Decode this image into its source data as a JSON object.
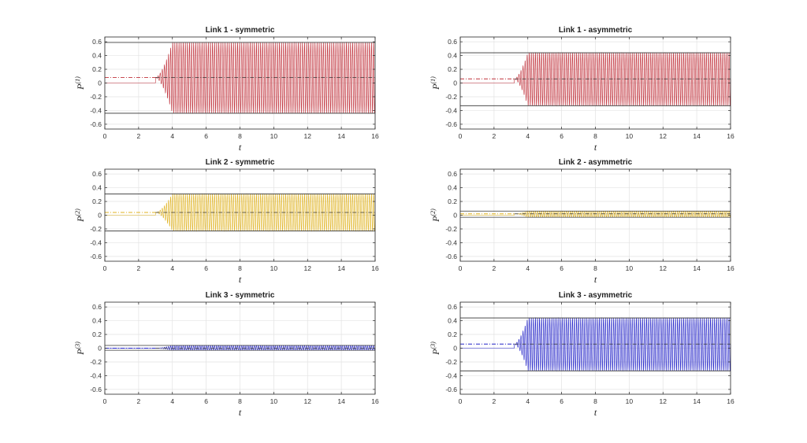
{
  "figure": {
    "colors": {
      "red": "#c0303a",
      "yellow": "#e0b321",
      "blue": "#2222c8",
      "envelope": "#333333",
      "grid": "#e3e3e3"
    }
  },
  "chart_data": [
    {
      "type": "line",
      "title": "Link 1 - symmetric",
      "xlabel": "t",
      "ylabel": "P",
      "ylabel_superscript": "(1)",
      "xlim": [
        0,
        16
      ],
      "ylim": [
        -0.67,
        0.67
      ],
      "xticks": [
        "0",
        "2",
        "4",
        "6",
        "8",
        "10",
        "12",
        "14",
        "16"
      ],
      "yticks": [
        "-0.6",
        "-0.4",
        "-0.2",
        "0",
        "0.2",
        "0.4",
        "0.6"
      ],
      "grid": true,
      "series": [
        {
          "color": "#c0303a",
          "onset_t": 3.0,
          "saturation_t": 4.0,
          "mean": 0.08,
          "upper_bound": 0.59,
          "lower_bound": -0.44,
          "oscillation_cycles": 105
        }
      ]
    },
    {
      "type": "line",
      "title": "Link 1 - asymmetric",
      "xlabel": "t",
      "ylabel": "P",
      "ylabel_superscript": "(1)",
      "xlim": [
        0,
        16
      ],
      "ylim": [
        -0.67,
        0.67
      ],
      "xticks": [
        "0",
        "2",
        "4",
        "6",
        "8",
        "10",
        "12",
        "14",
        "16"
      ],
      "yticks": [
        "-0.6",
        "-0.4",
        "-0.2",
        "0",
        "0.2",
        "0.4",
        "0.6"
      ],
      "grid": true,
      "series": [
        {
          "color": "#c0303a",
          "onset_t": 3.2,
          "saturation_t": 4.0,
          "mean": 0.06,
          "upper_bound": 0.44,
          "lower_bound": -0.33,
          "oscillation_cycles": 105
        }
      ]
    },
    {
      "type": "line",
      "title": "Link 2 - symmetric",
      "xlabel": "t",
      "ylabel": "P",
      "ylabel_superscript": "(2)",
      "xlim": [
        0,
        16
      ],
      "ylim": [
        -0.67,
        0.67
      ],
      "xticks": [
        "0",
        "2",
        "4",
        "6",
        "8",
        "10",
        "12",
        "14",
        "16"
      ],
      "yticks": [
        "-0.6",
        "-0.4",
        "-0.2",
        "0",
        "0.2",
        "0.4",
        "0.6"
      ],
      "grid": true,
      "series": [
        {
          "color": "#e0b321",
          "onset_t": 3.0,
          "saturation_t": 4.0,
          "mean": 0.04,
          "upper_bound": 0.31,
          "lower_bound": -0.23,
          "oscillation_cycles": 105
        }
      ]
    },
    {
      "type": "line",
      "title": "Link 2 - asymmetric",
      "xlabel": "t",
      "ylabel": "P",
      "ylabel_superscript": "(2)",
      "xlim": [
        0,
        16
      ],
      "ylim": [
        -0.67,
        0.67
      ],
      "xticks": [
        "0",
        "2",
        "4",
        "6",
        "8",
        "10",
        "12",
        "14",
        "16"
      ],
      "yticks": [
        "-0.6",
        "-0.4",
        "-0.2",
        "0",
        "0.2",
        "0.4",
        "0.6"
      ],
      "grid": true,
      "series": [
        {
          "color": "#e0b321",
          "onset_t": 3.2,
          "saturation_t": 4.0,
          "mean": 0.02,
          "upper_bound": 0.06,
          "lower_bound": -0.03,
          "oscillation_cycles": 105
        }
      ]
    },
    {
      "type": "line",
      "title": "Link 3 - symmetric",
      "xlabel": "t",
      "ylabel": "P",
      "ylabel_superscript": "(3)",
      "xlim": [
        0,
        16
      ],
      "ylim": [
        -0.67,
        0.67
      ],
      "xticks": [
        "0",
        "2",
        "4",
        "6",
        "8",
        "10",
        "12",
        "14",
        "16"
      ],
      "yticks": [
        "-0.6",
        "-0.4",
        "-0.2",
        "0",
        "0.2",
        "0.4",
        "0.6"
      ],
      "grid": true,
      "series": [
        {
          "color": "#2222c8",
          "onset_t": 3.0,
          "saturation_t": 4.0,
          "mean": 0.0,
          "upper_bound": 0.04,
          "lower_bound": -0.03,
          "oscillation_cycles": 105
        }
      ]
    },
    {
      "type": "line",
      "title": "Link 3 - asymmetric",
      "xlabel": "t",
      "ylabel": "P",
      "ylabel_superscript": "(3)",
      "xlim": [
        0,
        16
      ],
      "ylim": [
        -0.67,
        0.67
      ],
      "xticks": [
        "0",
        "2",
        "4",
        "6",
        "8",
        "10",
        "12",
        "14",
        "16"
      ],
      "yticks": [
        "-0.6",
        "-0.4",
        "-0.2",
        "0",
        "0.2",
        "0.4",
        "0.6"
      ],
      "grid": true,
      "series": [
        {
          "color": "#2222c8",
          "onset_t": 3.2,
          "saturation_t": 4.0,
          "mean": 0.06,
          "upper_bound": 0.44,
          "lower_bound": -0.33,
          "oscillation_cycles": 105
        }
      ]
    }
  ]
}
